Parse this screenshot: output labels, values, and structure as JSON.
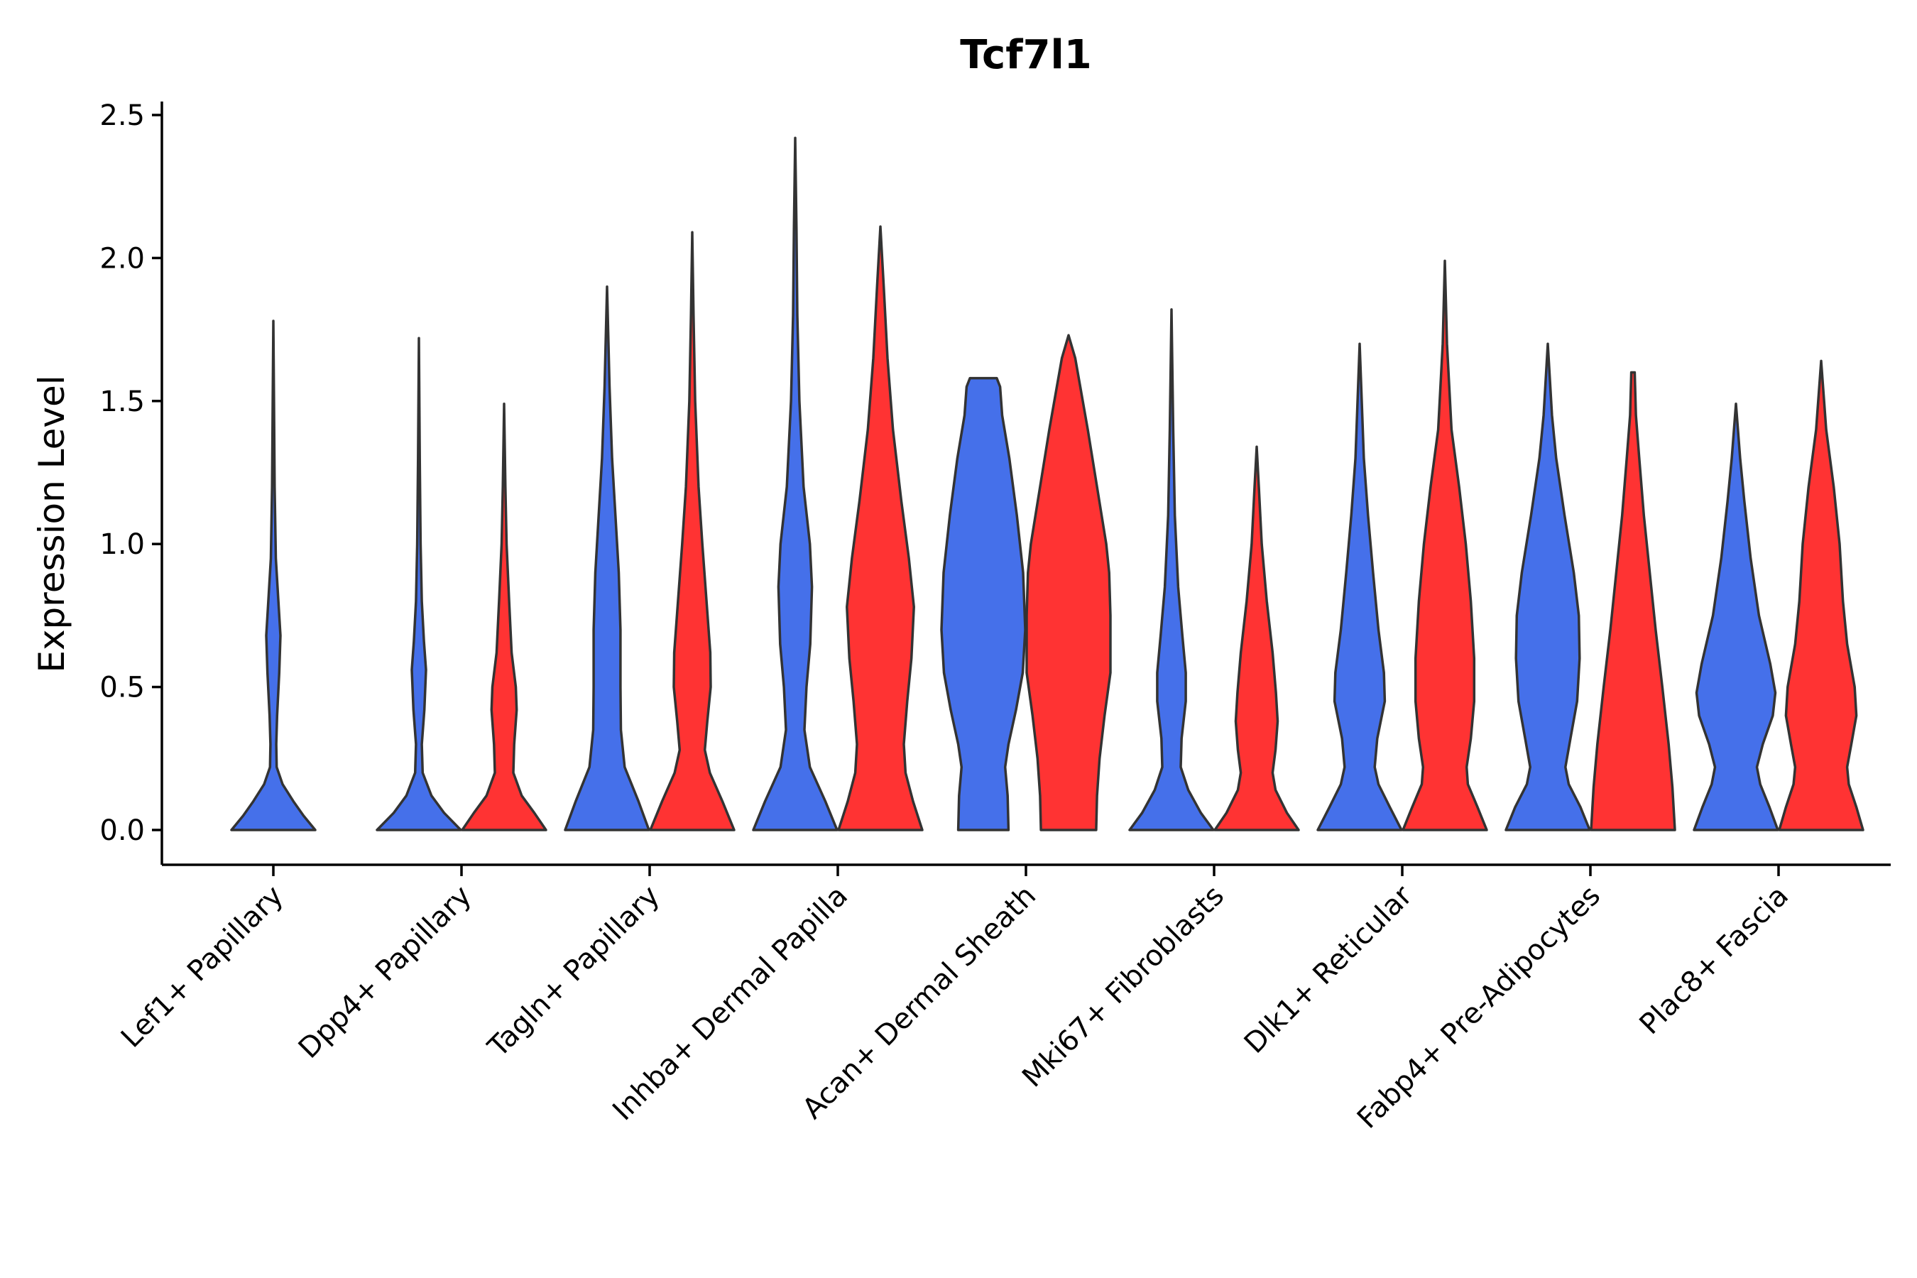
{
  "chart_data": {
    "type": "violin",
    "title": "Tcf7l1",
    "xlabel": "",
    "ylabel": "Expression Level",
    "ylim": [
      -0.12,
      2.55
    ],
    "yticks": [
      0.0,
      0.5,
      1.0,
      1.5,
      2.0,
      2.5
    ],
    "ytick_labels": [
      "0.0",
      "0.5",
      "1.0",
      "1.5",
      "2.0",
      "2.5"
    ],
    "categories": [
      "Lef1+ Papillary",
      "Dpp4+ Papillary",
      "Tagln+ Papillary",
      "Inhba+ Dermal Papilla",
      "Acan+ Dermal Sheath",
      "Mki67+ Fibroblasts",
      "Dlk1+ Reticular",
      "Fabp4+ Pre-Adipocytes",
      "Plac8+ Fascia"
    ],
    "colors": {
      "group1": "#4570ea",
      "group2": "#ff3333",
      "outline": "#333333"
    },
    "series": [
      {
        "name": "group1",
        "color": "#4570ea",
        "violins": [
          {
            "category": "Lef1+ Papillary",
            "max": 1.78,
            "profile": [
              [
                0,
                1.0
              ],
              [
                0.05,
                0.72
              ],
              [
                0.1,
                0.48
              ],
              [
                0.16,
                0.22
              ],
              [
                0.22,
                0.08
              ],
              [
                0.3,
                0.07
              ],
              [
                0.4,
                0.09
              ],
              [
                0.55,
                0.14
              ],
              [
                0.68,
                0.17
              ],
              [
                0.8,
                0.12
              ],
              [
                0.95,
                0.06
              ],
              [
                1.2,
                0.03
              ],
              [
                1.5,
                0.015
              ],
              [
                1.78,
                0
              ]
            ]
          },
          {
            "category": "Dpp4+ Papillary",
            "max": 1.72,
            "profile": [
              [
                0,
                1.0
              ],
              [
                0.06,
                0.6
              ],
              [
                0.12,
                0.3
              ],
              [
                0.2,
                0.09
              ],
              [
                0.3,
                0.07
              ],
              [
                0.42,
                0.13
              ],
              [
                0.56,
                0.17
              ],
              [
                0.66,
                0.12
              ],
              [
                0.8,
                0.07
              ],
              [
                1.0,
                0.04
              ],
              [
                1.3,
                0.02
              ],
              [
                1.72,
                0
              ]
            ]
          },
          {
            "category": "Tagln+ Papillary",
            "max": 1.9,
            "profile": [
              [
                0,
                1.0
              ],
              [
                0.1,
                0.75
              ],
              [
                0.22,
                0.42
              ],
              [
                0.35,
                0.33
              ],
              [
                0.5,
                0.32
              ],
              [
                0.7,
                0.32
              ],
              [
                0.9,
                0.28
              ],
              [
                1.1,
                0.2
              ],
              [
                1.3,
                0.12
              ],
              [
                1.55,
                0.06
              ],
              [
                1.9,
                0
              ]
            ]
          },
          {
            "category": "Inhba+ Dermal Papilla",
            "max": 2.42,
            "profile": [
              [
                0,
                1.0
              ],
              [
                0.1,
                0.72
              ],
              [
                0.22,
                0.35
              ],
              [
                0.35,
                0.22
              ],
              [
                0.5,
                0.27
              ],
              [
                0.65,
                0.36
              ],
              [
                0.85,
                0.4
              ],
              [
                1.0,
                0.35
              ],
              [
                1.2,
                0.2
              ],
              [
                1.5,
                0.1
              ],
              [
                1.8,
                0.05
              ],
              [
                2.1,
                0.03
              ],
              [
                2.42,
                0
              ]
            ]
          },
          {
            "category": "Acan+ Dermal Sheath",
            "max": 1.58,
            "profile": [
              [
                0,
                0.6
              ],
              [
                0.12,
                0.58
              ],
              [
                0.22,
                0.52
              ],
              [
                0.3,
                0.6
              ],
              [
                0.42,
                0.78
              ],
              [
                0.55,
                0.94
              ],
              [
                0.7,
                1.0
              ],
              [
                0.9,
                0.95
              ],
              [
                1.1,
                0.8
              ],
              [
                1.3,
                0.62
              ],
              [
                1.45,
                0.45
              ],
              [
                1.55,
                0.4
              ],
              [
                1.58,
                0.32
              ]
            ]
          },
          {
            "category": "Mki67+ Fibroblasts",
            "max": 1.82,
            "profile": [
              [
                0,
                1.0
              ],
              [
                0.06,
                0.7
              ],
              [
                0.14,
                0.4
              ],
              [
                0.22,
                0.22
              ],
              [
                0.32,
                0.24
              ],
              [
                0.45,
                0.34
              ],
              [
                0.55,
                0.34
              ],
              [
                0.68,
                0.26
              ],
              [
                0.85,
                0.16
              ],
              [
                1.1,
                0.08
              ],
              [
                1.4,
                0.04
              ],
              [
                1.82,
                0
              ]
            ]
          },
          {
            "category": "Dlk1+ Reticular",
            "max": 1.7,
            "profile": [
              [
                0,
                1.0
              ],
              [
                0.08,
                0.72
              ],
              [
                0.16,
                0.45
              ],
              [
                0.22,
                0.36
              ],
              [
                0.32,
                0.42
              ],
              [
                0.45,
                0.6
              ],
              [
                0.55,
                0.58
              ],
              [
                0.7,
                0.45
              ],
              [
                0.9,
                0.32
              ],
              [
                1.1,
                0.2
              ],
              [
                1.3,
                0.1
              ],
              [
                1.7,
                0
              ]
            ]
          },
          {
            "category": "Fabp4+ Pre-Adipocytes",
            "max": 1.7,
            "profile": [
              [
                0,
                1.0
              ],
              [
                0.08,
                0.78
              ],
              [
                0.16,
                0.5
              ],
              [
                0.22,
                0.42
              ],
              [
                0.32,
                0.54
              ],
              [
                0.45,
                0.7
              ],
              [
                0.6,
                0.76
              ],
              [
                0.75,
                0.74
              ],
              [
                0.9,
                0.62
              ],
              [
                1.1,
                0.4
              ],
              [
                1.3,
                0.2
              ],
              [
                1.45,
                0.1
              ],
              [
                1.7,
                0
              ]
            ]
          },
          {
            "category": "Plac8+ Fascia",
            "max": 1.49,
            "profile": [
              [
                0,
                1.0
              ],
              [
                0.08,
                0.8
              ],
              [
                0.16,
                0.58
              ],
              [
                0.22,
                0.5
              ],
              [
                0.3,
                0.64
              ],
              [
                0.4,
                0.88
              ],
              [
                0.48,
                0.94
              ],
              [
                0.58,
                0.82
              ],
              [
                0.75,
                0.55
              ],
              [
                0.95,
                0.35
              ],
              [
                1.15,
                0.2
              ],
              [
                1.3,
                0.1
              ],
              [
                1.49,
                0
              ]
            ]
          }
        ]
      },
      {
        "name": "group2",
        "color": "#ff3333",
        "violins": [
          {
            "category": "Dpp4+ Papillary",
            "max": 1.49,
            "profile": [
              [
                0,
                1.0
              ],
              [
                0.06,
                0.72
              ],
              [
                0.12,
                0.42
              ],
              [
                0.2,
                0.22
              ],
              [
                0.3,
                0.24
              ],
              [
                0.42,
                0.3
              ],
              [
                0.5,
                0.28
              ],
              [
                0.62,
                0.18
              ],
              [
                0.8,
                0.12
              ],
              [
                1.0,
                0.06
              ],
              [
                1.2,
                0.03
              ],
              [
                1.49,
                0
              ]
            ]
          },
          {
            "category": "Tagln+ Papillary",
            "max": 2.09,
            "profile": [
              [
                0,
                1.0
              ],
              [
                0.1,
                0.72
              ],
              [
                0.2,
                0.42
              ],
              [
                0.28,
                0.3
              ],
              [
                0.38,
                0.36
              ],
              [
                0.5,
                0.44
              ],
              [
                0.62,
                0.43
              ],
              [
                0.8,
                0.34
              ],
              [
                1.0,
                0.24
              ],
              [
                1.2,
                0.15
              ],
              [
                1.5,
                0.07
              ],
              [
                1.8,
                0.03
              ],
              [
                2.09,
                0
              ]
            ]
          },
          {
            "category": "Inhba+ Dermal Papilla",
            "max": 2.11,
            "profile": [
              [
                0,
                1.0
              ],
              [
                0.1,
                0.78
              ],
              [
                0.2,
                0.6
              ],
              [
                0.3,
                0.56
              ],
              [
                0.45,
                0.64
              ],
              [
                0.6,
                0.74
              ],
              [
                0.78,
                0.8
              ],
              [
                0.95,
                0.68
              ],
              [
                1.15,
                0.5
              ],
              [
                1.4,
                0.3
              ],
              [
                1.65,
                0.17
              ],
              [
                1.9,
                0.08
              ],
              [
                2.11,
                0
              ]
            ]
          },
          {
            "category": "Acan+ Dermal Sheath",
            "max": 1.73,
            "profile": [
              [
                0,
                0.66
              ],
              [
                0.12,
                0.68
              ],
              [
                0.25,
                0.74
              ],
              [
                0.4,
                0.86
              ],
              [
                0.55,
                1.0
              ],
              [
                0.75,
                1.0
              ],
              [
                0.9,
                0.97
              ],
              [
                1.0,
                0.9
              ],
              [
                1.2,
                0.68
              ],
              [
                1.4,
                0.46
              ],
              [
                1.55,
                0.28
              ],
              [
                1.65,
                0.16
              ],
              [
                1.73,
                0
              ]
            ]
          },
          {
            "category": "Mki67+ Fibroblasts",
            "max": 1.34,
            "profile": [
              [
                0,
                1.0
              ],
              [
                0.06,
                0.72
              ],
              [
                0.14,
                0.45
              ],
              [
                0.2,
                0.38
              ],
              [
                0.28,
                0.45
              ],
              [
                0.38,
                0.5
              ],
              [
                0.48,
                0.46
              ],
              [
                0.62,
                0.38
              ],
              [
                0.8,
                0.24
              ],
              [
                1.0,
                0.12
              ],
              [
                1.2,
                0.05
              ],
              [
                1.34,
                0
              ]
            ]
          },
          {
            "category": "Dlk1+ Reticular",
            "max": 1.99,
            "profile": [
              [
                0,
                1.0
              ],
              [
                0.08,
                0.78
              ],
              [
                0.16,
                0.55
              ],
              [
                0.22,
                0.52
              ],
              [
                0.32,
                0.62
              ],
              [
                0.45,
                0.7
              ],
              [
                0.6,
                0.7
              ],
              [
                0.8,
                0.62
              ],
              [
                1.0,
                0.5
              ],
              [
                1.2,
                0.34
              ],
              [
                1.4,
                0.16
              ],
              [
                1.7,
                0.05
              ],
              [
                1.99,
                0
              ]
            ]
          },
          {
            "category": "Fabp4+ Pre-Adipocytes",
            "max": 1.6,
            "profile": [
              [
                0,
                1.0
              ],
              [
                0.15,
                0.94
              ],
              [
                0.3,
                0.85
              ],
              [
                0.5,
                0.7
              ],
              [
                0.7,
                0.54
              ],
              [
                0.9,
                0.4
              ],
              [
                1.1,
                0.26
              ],
              [
                1.3,
                0.15
              ],
              [
                1.45,
                0.07
              ],
              [
                1.6,
                0.04
              ]
            ]
          },
          {
            "category": "Plac8+ Fascia",
            "max": 1.64,
            "profile": [
              [
                0,
                1.0
              ],
              [
                0.08,
                0.84
              ],
              [
                0.16,
                0.66
              ],
              [
                0.22,
                0.62
              ],
              [
                0.3,
                0.72
              ],
              [
                0.4,
                0.84
              ],
              [
                0.5,
                0.8
              ],
              [
                0.65,
                0.62
              ],
              [
                0.8,
                0.52
              ],
              [
                1.0,
                0.44
              ],
              [
                1.2,
                0.3
              ],
              [
                1.4,
                0.12
              ],
              [
                1.64,
                0
              ]
            ]
          }
        ]
      }
    ]
  }
}
